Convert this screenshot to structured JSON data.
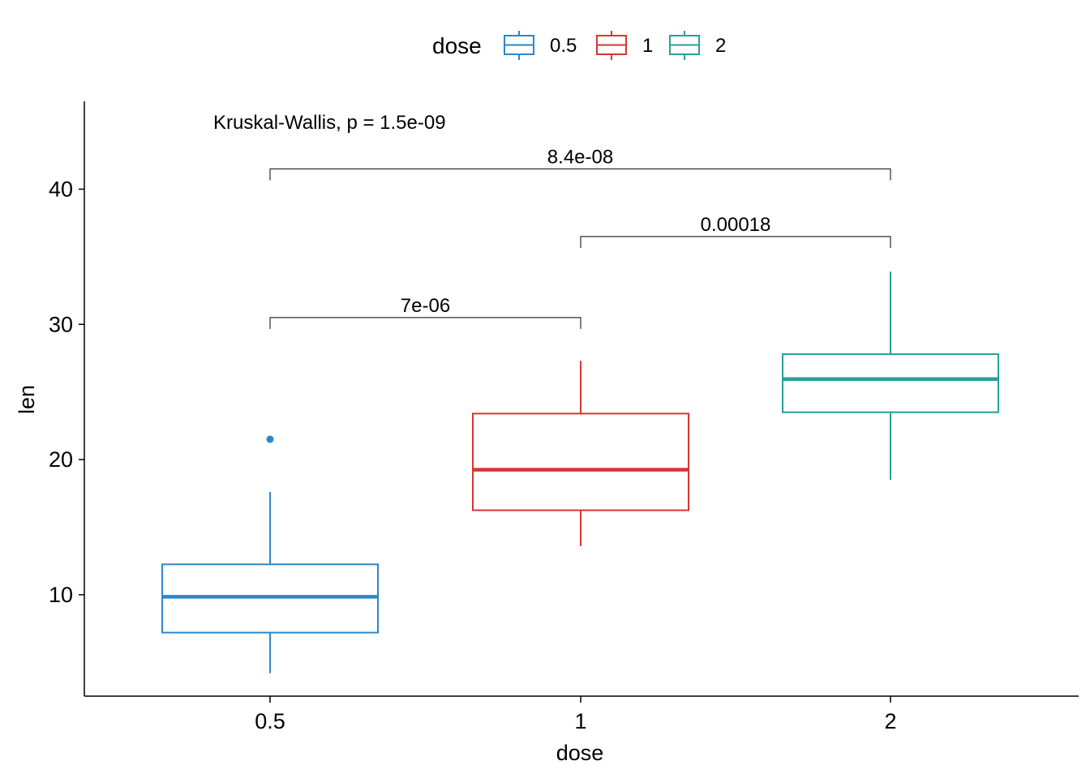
{
  "chart_data": {
    "type": "boxplot",
    "xlabel": "dose",
    "ylabel": "len",
    "categories": [
      "0.5",
      "1",
      "2"
    ],
    "ylim": [
      2.5,
      46.5
    ],
    "yticks": [
      10,
      20,
      30,
      40
    ],
    "legend": {
      "title": "dose",
      "position": "top",
      "entries": [
        {
          "label": "0.5",
          "color": "#2E86C9"
        },
        {
          "label": "1",
          "color": "#D93434"
        },
        {
          "label": "2",
          "color": "#26A199"
        }
      ]
    },
    "boxes": [
      {
        "category": "0.5",
        "color": "#2E86C9",
        "min": 4.2,
        "q1": 7.2,
        "median": 9.85,
        "q3": 12.25,
        "max": 17.6,
        "outliers": [
          21.5
        ]
      },
      {
        "category": "1",
        "color": "#D93434",
        "min": 13.6,
        "q1": 16.25,
        "median": 19.25,
        "q3": 23.4,
        "max": 27.3,
        "outliers": []
      },
      {
        "category": "2",
        "color": "#26A199",
        "min": 18.5,
        "q1": 23.5,
        "median": 25.95,
        "q3": 27.8,
        "max": 33.9,
        "outliers": []
      }
    ],
    "annotations": {
      "global_test": "Kruskal-Wallis, p = 1.5e-09",
      "comparisons": [
        {
          "from": "0.5",
          "to": "1",
          "label": "7e-06",
          "y": 30.5
        },
        {
          "from": "1",
          "to": "2",
          "label": "0.00018",
          "y": 36.5
        },
        {
          "from": "0.5",
          "to": "2",
          "label": "8.4e-08",
          "y": 41.5
        }
      ]
    }
  }
}
